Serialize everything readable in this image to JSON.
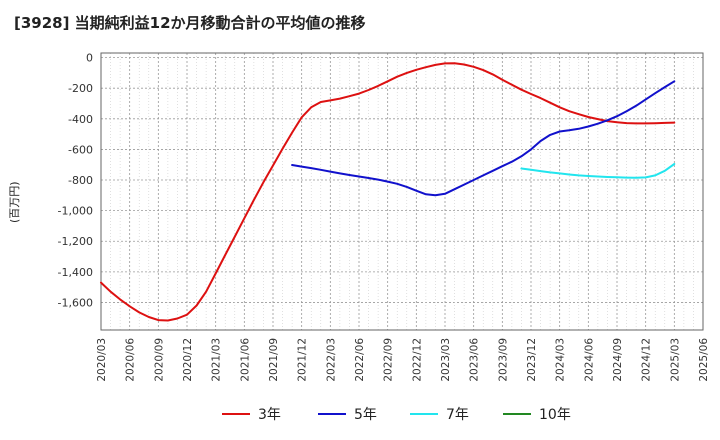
{
  "chart_data": {
    "type": "line",
    "title": "[3928]  当期純利益12か月移動合計の平均値の推移",
    "ylabel": "(百万円)",
    "xlabel": "",
    "ylim": [
      -1780,
      30
    ],
    "yticks": [
      0,
      -200,
      -400,
      -600,
      -800,
      -1000,
      -1200,
      -1400,
      -1600
    ],
    "ytick_labels": [
      "0",
      "-200",
      "-400",
      "-600",
      "-800",
      "-1,000",
      "-1,200",
      "-1,400",
      "-1,600"
    ],
    "x_start": "2020/03",
    "x_end": "2025/06",
    "xtick_labels": [
      "2020/03",
      "2020/06",
      "2020/09",
      "2020/12",
      "2021/03",
      "2021/06",
      "2021/09",
      "2021/12",
      "2022/03",
      "2022/06",
      "2022/09",
      "2022/12",
      "2023/03",
      "2023/06",
      "2023/09",
      "2023/12",
      "2024/03",
      "2024/06",
      "2024/09",
      "2024/12",
      "2025/03",
      "2025/06"
    ],
    "grid": true,
    "legend_position": "bottom",
    "series": [
      {
        "name": "3年",
        "color": "#dd1111",
        "x": [
          "2020/03",
          "2020/04",
          "2020/05",
          "2020/06",
          "2020/07",
          "2020/08",
          "2020/09",
          "2020/10",
          "2020/11",
          "2020/12",
          "2021/01",
          "2021/02",
          "2021/03",
          "2021/04",
          "2021/05",
          "2021/06",
          "2021/07",
          "2021/08",
          "2021/09",
          "2021/10",
          "2021/11",
          "2021/12",
          "2022/01",
          "2022/02",
          "2022/03",
          "2022/04",
          "2022/05",
          "2022/06",
          "2022/07",
          "2022/08",
          "2022/09",
          "2022/10",
          "2022/11",
          "2022/12",
          "2023/01",
          "2023/02",
          "2023/03",
          "2023/04",
          "2023/05",
          "2023/06",
          "2023/07",
          "2023/08",
          "2023/09",
          "2023/10",
          "2023/11",
          "2023/12",
          "2024/01",
          "2024/02",
          "2024/03",
          "2024/04",
          "2024/05",
          "2024/06",
          "2024/07",
          "2024/08",
          "2024/09",
          "2024/10",
          "2024/11",
          "2024/12",
          "2025/01",
          "2025/02",
          "2025/03"
        ],
        "values": [
          -1470,
          -1530,
          -1580,
          -1625,
          -1665,
          -1695,
          -1715,
          -1718,
          -1705,
          -1680,
          -1620,
          -1530,
          -1410,
          -1290,
          -1170,
          -1050,
          -930,
          -815,
          -705,
          -595,
          -490,
          -390,
          -325,
          -290,
          -280,
          -268,
          -252,
          -235,
          -212,
          -185,
          -155,
          -125,
          -100,
          -80,
          -63,
          -48,
          -38,
          -37,
          -45,
          -60,
          -82,
          -110,
          -145,
          -178,
          -210,
          -238,
          -265,
          -295,
          -325,
          -350,
          -370,
          -388,
          -402,
          -415,
          -423,
          -428,
          -430,
          -430,
          -429,
          -427,
          -425
        ]
      },
      {
        "name": "5年",
        "color": "#1111cc",
        "x": [
          "2021/11",
          "2021/12",
          "2022/01",
          "2022/02",
          "2022/03",
          "2022/04",
          "2022/05",
          "2022/06",
          "2022/07",
          "2022/08",
          "2022/09",
          "2022/10",
          "2022/11",
          "2022/12",
          "2023/01",
          "2023/02",
          "2023/03",
          "2023/04",
          "2023/05",
          "2023/06",
          "2023/07",
          "2023/08",
          "2023/09",
          "2023/10",
          "2023/11",
          "2023/12",
          "2024/01",
          "2024/02",
          "2024/03",
          "2024/04",
          "2024/05",
          "2024/06",
          "2024/07",
          "2024/08",
          "2024/09",
          "2024/10",
          "2024/11",
          "2024/12",
          "2025/01",
          "2025/02",
          "2025/03"
        ],
        "values": [
          -702,
          -712,
          -722,
          -733,
          -745,
          -757,
          -767,
          -777,
          -787,
          -797,
          -810,
          -825,
          -845,
          -870,
          -893,
          -900,
          -890,
          -860,
          -830,
          -800,
          -770,
          -740,
          -710,
          -680,
          -645,
          -600,
          -545,
          -505,
          -483,
          -475,
          -465,
          -450,
          -432,
          -410,
          -383,
          -350,
          -315,
          -273,
          -233,
          -193,
          -155
        ]
      },
      {
        "name": "7年",
        "color": "#22e5ee",
        "x": [
          "2023/11",
          "2023/12",
          "2024/01",
          "2024/02",
          "2024/03",
          "2024/04",
          "2024/05",
          "2024/06",
          "2024/07",
          "2024/08",
          "2024/09",
          "2024/10",
          "2024/11",
          "2024/12",
          "2025/01",
          "2025/02",
          "2025/03"
        ],
        "values": [
          -725,
          -733,
          -742,
          -750,
          -757,
          -764,
          -770,
          -774,
          -777,
          -780,
          -782,
          -784,
          -785,
          -783,
          -770,
          -740,
          -695
        ]
      },
      {
        "name": "10年",
        "color": "#228822",
        "x": [],
        "values": []
      }
    ]
  }
}
